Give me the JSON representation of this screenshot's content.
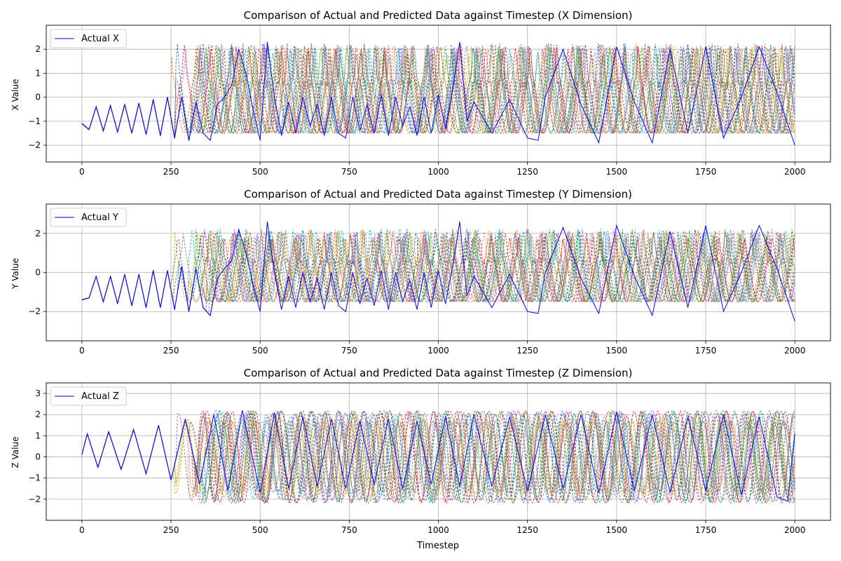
{
  "chart_data": [
    {
      "type": "line",
      "title": "Comparison of Actual and Predicted Data against Timestep (X Dimension)",
      "xlabel": "",
      "ylabel": "X Value",
      "xlim": [
        -100,
        2100
      ],
      "ylim": [
        -2.7,
        3.0
      ],
      "x_ticks": [
        0,
        250,
        500,
        750,
        1000,
        1250,
        1500,
        1750,
        2000
      ],
      "y_ticks": [
        -2,
        -1,
        0,
        1,
        2
      ],
      "grid": true,
      "legend": {
        "position": "top-left",
        "entries": [
          "Actual X"
        ]
      },
      "series": [
        {
          "name": "Actual X",
          "color": "#0000ff",
          "style": "solid",
          "x": [
            0,
            20,
            40,
            60,
            80,
            100,
            120,
            140,
            160,
            180,
            200,
            220,
            240,
            260,
            280,
            300,
            320,
            340,
            360,
            380,
            400,
            420,
            440,
            460,
            480,
            500,
            520,
            540,
            560,
            580,
            600,
            620,
            640,
            660,
            680,
            700,
            720,
            740,
            760,
            780,
            800,
            820,
            840,
            860,
            880,
            900,
            920,
            940,
            960,
            980,
            1000,
            1020,
            1040,
            1060,
            1080,
            1100,
            1150,
            1200,
            1250,
            1280,
            1300,
            1350,
            1400,
            1450,
            1500,
            1550,
            1600,
            1650,
            1700,
            1750,
            1800,
            1850,
            1900,
            1950,
            2000
          ],
          "y": [
            -1.1,
            -1.35,
            -0.4,
            -1.4,
            -0.35,
            -1.45,
            -0.3,
            -1.5,
            -0.25,
            -1.55,
            -0.1,
            -1.6,
            0.0,
            -1.7,
            0.0,
            -1.8,
            -0.2,
            -1.5,
            -1.8,
            -0.3,
            0.0,
            0.5,
            2.0,
            1.0,
            -0.5,
            -1.8,
            2.3,
            0.0,
            -1.6,
            -0.2,
            -1.5,
            0.0,
            -1.2,
            -0.3,
            -1.6,
            0.0,
            -1.5,
            -1.7,
            0.0,
            -1.4,
            -0.3,
            -1.5,
            0.1,
            -1.6,
            0.0,
            -1.2,
            -0.4,
            -1.6,
            0.0,
            -1.5,
            0.1,
            -1.3,
            0.3,
            2.3,
            -1.0,
            -0.2,
            -1.5,
            -0.1,
            -1.7,
            -1.8,
            0.0,
            2.0,
            -0.3,
            -1.9,
            2.1,
            -0.2,
            -1.9,
            2.0,
            -1.5,
            2.1,
            -1.7,
            0.0,
            2.1,
            0.2,
            -2.0
          ]
        }
      ]
    },
    {
      "type": "line",
      "title": "Comparison of Actual and Predicted Data against Timestep (Y Dimension)",
      "xlabel": "",
      "ylabel": "Y Value",
      "xlim": [
        -100,
        2100
      ],
      "ylim": [
        -3.5,
        3.5
      ],
      "x_ticks": [
        0,
        250,
        500,
        750,
        1000,
        1250,
        1500,
        1750,
        2000
      ],
      "y_ticks": [
        -2,
        0,
        2
      ],
      "grid": true,
      "legend": {
        "position": "top-left",
        "entries": [
          "Actual Y"
        ]
      },
      "series": [
        {
          "name": "Actual Y",
          "color": "#0000ff",
          "style": "solid",
          "x": [
            0,
            20,
            40,
            60,
            80,
            100,
            120,
            140,
            160,
            180,
            200,
            220,
            240,
            260,
            280,
            300,
            320,
            340,
            360,
            380,
            400,
            420,
            440,
            460,
            480,
            500,
            520,
            540,
            560,
            580,
            600,
            620,
            640,
            660,
            680,
            700,
            720,
            740,
            760,
            780,
            800,
            820,
            840,
            860,
            880,
            900,
            920,
            940,
            960,
            980,
            1000,
            1020,
            1040,
            1060,
            1080,
            1100,
            1150,
            1200,
            1250,
            1280,
            1300,
            1350,
            1400,
            1450,
            1500,
            1550,
            1600,
            1650,
            1700,
            1750,
            1800,
            1850,
            1900,
            1950,
            2000
          ],
          "y": [
            -1.4,
            -1.3,
            -0.2,
            -1.5,
            -0.2,
            -1.6,
            -0.1,
            -1.7,
            -0.1,
            -1.8,
            0.1,
            -1.8,
            0.1,
            -1.9,
            0.3,
            -2.0,
            0.2,
            -1.8,
            -2.2,
            -0.3,
            0.2,
            0.6,
            2.2,
            1.0,
            -0.6,
            -2.0,
            2.6,
            0.0,
            -1.9,
            -0.2,
            -1.8,
            0.0,
            -1.5,
            -0.3,
            -1.9,
            0.0,
            -1.7,
            -2.0,
            0.0,
            -1.6,
            -0.3,
            -1.7,
            0.1,
            -1.9,
            0.0,
            -1.5,
            -0.4,
            -1.9,
            0.0,
            -1.8,
            0.1,
            -1.6,
            0.3,
            2.6,
            -1.2,
            -0.2,
            -1.8,
            -0.1,
            -2.0,
            -2.1,
            0.0,
            2.3,
            -0.3,
            -2.1,
            2.4,
            -0.2,
            -2.2,
            2.1,
            -1.8,
            2.4,
            -2.0,
            0.0,
            2.4,
            0.2,
            -2.5
          ]
        }
      ]
    },
    {
      "type": "line",
      "title": "Comparison of Actual and Predicted Data against Timestep (Z Dimension)",
      "xlabel": "Timestep",
      "ylabel": "Z Value",
      "xlim": [
        -100,
        2100
      ],
      "ylim": [
        -3.0,
        3.5
      ],
      "x_ticks": [
        0,
        250,
        500,
        750,
        1000,
        1250,
        1500,
        1750,
        2000
      ],
      "y_ticks": [
        -2,
        -1,
        0,
        1,
        2,
        3
      ],
      "grid": true,
      "legend": {
        "position": "top-left",
        "entries": [
          "Actual Z"
        ]
      },
      "series": [
        {
          "name": "Actual Z",
          "color": "#0000ff",
          "style": "solid",
          "x": [
            0,
            15,
            45,
            75,
            110,
            145,
            180,
            215,
            250,
            290,
            330,
            370,
            410,
            450,
            500,
            540,
            580,
            620,
            660,
            700,
            740,
            780,
            820,
            860,
            900,
            940,
            980,
            1020,
            1060,
            1100,
            1150,
            1200,
            1250,
            1300,
            1350,
            1400,
            1450,
            1500,
            1550,
            1600,
            1650,
            1700,
            1750,
            1800,
            1850,
            1900,
            1950,
            1980,
            2000
          ],
          "y": [
            0.1,
            1.1,
            -0.5,
            1.2,
            -0.6,
            1.3,
            -0.8,
            1.5,
            -1.1,
            1.8,
            -1.3,
            2.0,
            -1.6,
            2.2,
            -1.7,
            2.1,
            -1.5,
            1.9,
            -1.4,
            1.8,
            -1.5,
            1.7,
            -1.3,
            1.8,
            -1.5,
            1.7,
            -1.3,
            1.9,
            -1.4,
            2.0,
            -1.4,
            1.9,
            -1.6,
            2.0,
            -1.5,
            2.0,
            -1.7,
            2.1,
            -1.6,
            2.0,
            -1.7,
            1.9,
            -1.6,
            2.0,
            -1.8,
            1.9,
            -1.9,
            -2.1,
            1.1
          ]
        }
      ]
    }
  ],
  "predicted_colors": [
    "#1f77b4",
    "#ff7f0e",
    "#2ca02c",
    "#d62728",
    "#9467bd",
    "#8c564b",
    "#e377c2",
    "#7f7f7f",
    "#bcbd22",
    "#17becf"
  ]
}
